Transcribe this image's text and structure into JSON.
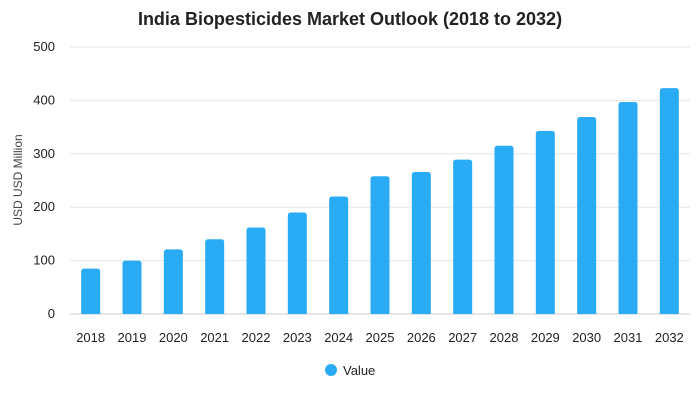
{
  "chart_data": {
    "type": "bar",
    "title": "India Biopesticides Market Outlook (2018 to 2032)",
    "xlabel": "",
    "ylabel": "USD USD Million",
    "categories": [
      "2018",
      "2019",
      "2020",
      "2021",
      "2022",
      "2023",
      "2024",
      "2025",
      "2026",
      "2027",
      "2028",
      "2029",
      "2030",
      "2031",
      "2032"
    ],
    "series": [
      {
        "name": "Value",
        "color": "#2aabf5",
        "values": [
          85,
          100,
          121,
          140,
          162,
          190,
          220,
          258,
          266,
          289,
          315,
          343,
          369,
          397,
          423
        ]
      }
    ],
    "ylim": [
      0,
      500
    ],
    "yticks": [
      0,
      100,
      200,
      300,
      400,
      500
    ],
    "grid": true,
    "legend_position": "bottom-center"
  }
}
